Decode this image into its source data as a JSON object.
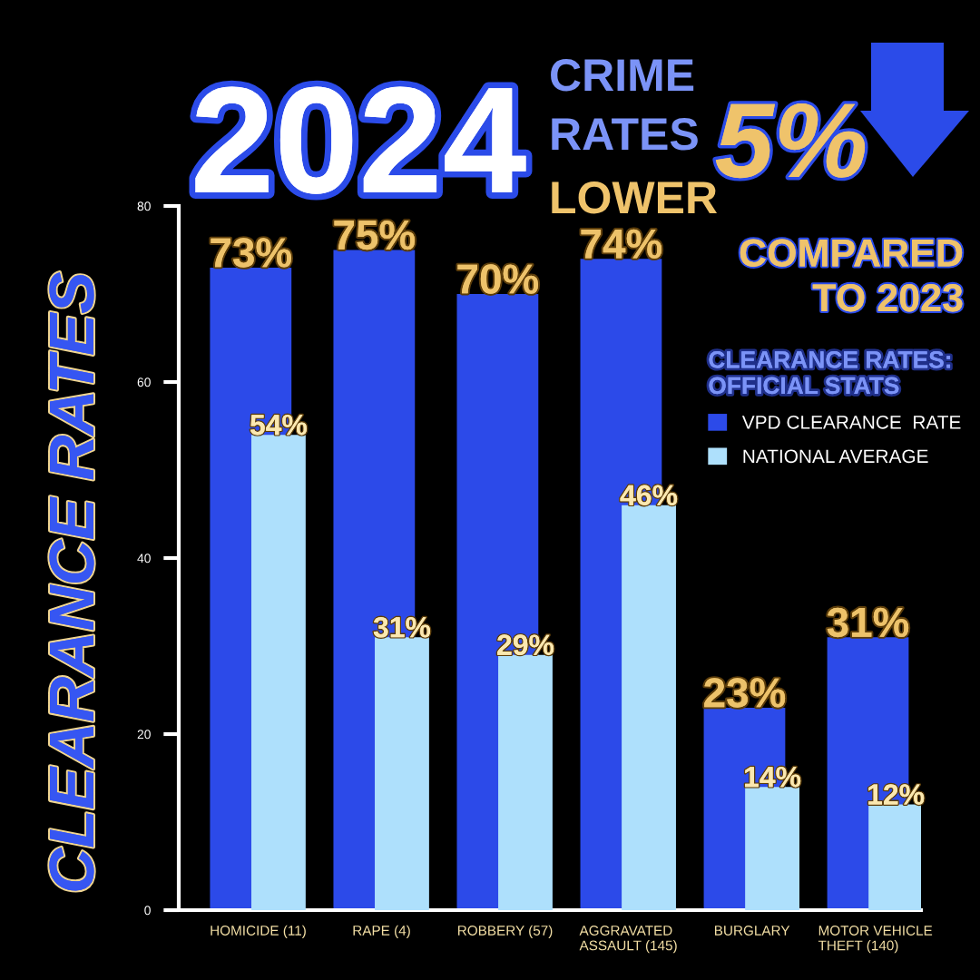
{
  "chart_data": {
    "type": "bar",
    "title": "2024",
    "subtitle": "CRIME RATES LOWER",
    "ylabel": "CLEARANCE RATES",
    "legend_title": "CLEARANCE RATES: OFFICIAL STATS",
    "annotations": [
      "5%",
      "COMPARED TO 2023"
    ],
    "categories": [
      "HOMICIDE (11)",
      "RAPE (4)",
      "ROBBERY (57)",
      "AGGRAVATED ASSAULT (145)",
      "BURGLARY",
      "MOTOR VEHICLE THEFT (140)"
    ],
    "series": [
      {
        "name": "VPD CLEARANCE  RATE",
        "color": "#2c4ae9",
        "values": [
          73,
          75,
          70,
          74,
          23,
          31
        ],
        "value_labels": [
          "73%",
          "75%",
          "70%",
          "74%",
          "23%",
          "31%"
        ]
      },
      {
        "name": "NATIONAL AVERAGE",
        "color": "#aee0fc",
        "values": [
          54,
          31,
          29,
          46,
          14,
          12
        ],
        "value_labels": [
          "54%",
          "31%",
          "29%",
          "46%",
          "14%",
          "12%"
        ]
      }
    ],
    "ylim": [
      0,
      80
    ],
    "yticks": [
      0,
      20,
      40,
      60,
      80
    ],
    "grid": false,
    "legend": "top right"
  }
}
